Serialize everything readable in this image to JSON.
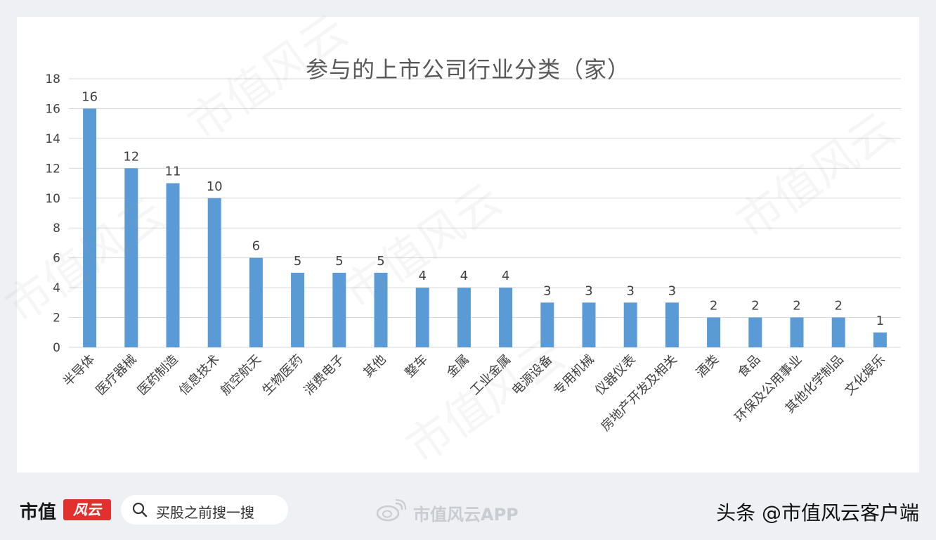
{
  "chart_data": {
    "type": "bar",
    "title": "参与的上市公司行业分类（家）",
    "categories": [
      "半导体",
      "医疗器械",
      "医药制造",
      "信息技术",
      "航空航天",
      "生物医药",
      "消费电子",
      "其他",
      "整车",
      "金属",
      "工业金属",
      "电源设备",
      "专用机械",
      "仪器仪表",
      "房地产开发及相关",
      "酒类",
      "食品",
      "环保及公用事业",
      "其他化学制品",
      "文化娱乐"
    ],
    "values": [
      16,
      12,
      11,
      10,
      6,
      5,
      5,
      5,
      4,
      4,
      4,
      3,
      3,
      3,
      3,
      2,
      2,
      2,
      2,
      1
    ],
    "ylim": [
      0,
      18
    ],
    "yticks": [
      0,
      2,
      4,
      6,
      8,
      10,
      12,
      14,
      16,
      18
    ],
    "xlabel": "",
    "ylabel": "",
    "grid": true,
    "bar_color": "#5b9bd5",
    "data_labels": true
  },
  "footer": {
    "logo_text": "市值",
    "logo_badge": "风云",
    "search_placeholder": "买股之前搜一搜",
    "weibo_text": "市值风云APP",
    "toutiao_text": "头条 @市值风云客户端"
  },
  "watermark": "市值风云",
  "colors": {
    "background": "#eef0f3",
    "card": "#ffffff",
    "grid": "#d9d9d9",
    "text": "#404040",
    "brand_red": "#e0312f"
  }
}
